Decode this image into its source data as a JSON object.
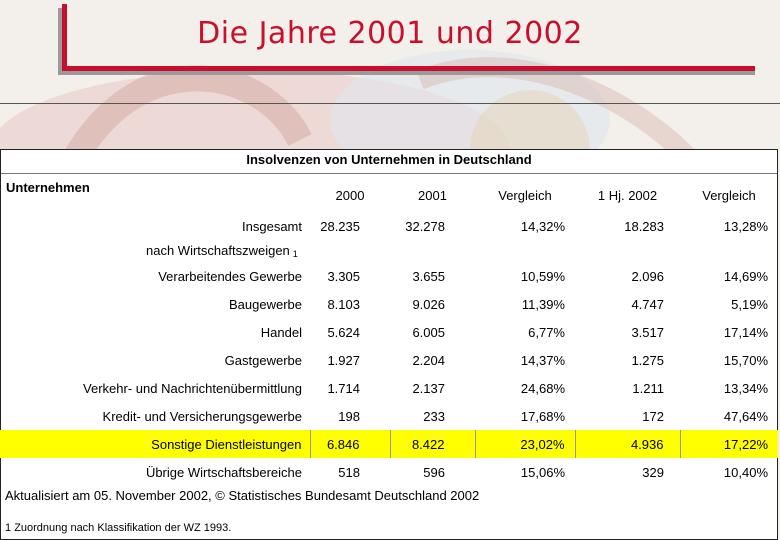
{
  "slide": {
    "title": "Die Jahre 2001 und 2002"
  },
  "table": {
    "caption": "Insolvenzen von Unternehmen in Deutschland",
    "corner_label": "Unternehmen",
    "columns": [
      "2000",
      "2001",
      "Vergleich",
      "1 Hj. 2002",
      "Vergleich"
    ],
    "total": {
      "label": "Insgesamt",
      "values": [
        "28.235",
        "32.278",
        "14,32%",
        "18.283",
        "13,28%"
      ]
    },
    "section_label": "nach Wirtschaftszweigen",
    "section_footnote_mark": "1",
    "rows": [
      {
        "label": "Verarbeitendes Gewerbe",
        "values": [
          "3.305",
          "3.655",
          "10,59%",
          "2.096",
          "14,69%"
        ]
      },
      {
        "label": "Baugewerbe",
        "values": [
          "8.103",
          "9.026",
          "11,39%",
          "4.747",
          "5,19%"
        ]
      },
      {
        "label": "Handel",
        "values": [
          "5.624",
          "6.005",
          "6,77%",
          "3.517",
          "17,14%"
        ]
      },
      {
        "label": "Gastgewerbe",
        "values": [
          "1.927",
          "2.204",
          "14,37%",
          "1.275",
          "15,70%"
        ]
      },
      {
        "label": "Verkehr- und Nachrichtenübermittlung",
        "values": [
          "1.714",
          "2.137",
          "24,68%",
          "1.211",
          "13,34%"
        ]
      },
      {
        "label": "Kredit- und Versicherungsgewerbe",
        "values": [
          "198",
          "233",
          "17,68%",
          "172",
          "47,64%"
        ]
      },
      {
        "label": "Sonstige Dienstleistungen",
        "values": [
          "6.846",
          "8.422",
          "23,02%",
          "4.936",
          "17,22%"
        ],
        "highlight": true
      },
      {
        "label": "Übrige Wirtschaftsbereiche",
        "values": [
          "518",
          "596",
          "15,06%",
          "329",
          "10,40%"
        ]
      }
    ],
    "highlight_color": "#ffff00"
  },
  "footer": {
    "source": "Aktualisiert am 05. November 2002, © Statistisches Bundesamt Deutschland 2002",
    "footnote_mark": "1",
    "footnote": "Zuordnung nach Klassifikation der WZ 1993."
  },
  "colors": {
    "title": "#c8102e",
    "accent_red": "#c8102e",
    "panel": "#ffffff",
    "background": "#f3efea"
  }
}
